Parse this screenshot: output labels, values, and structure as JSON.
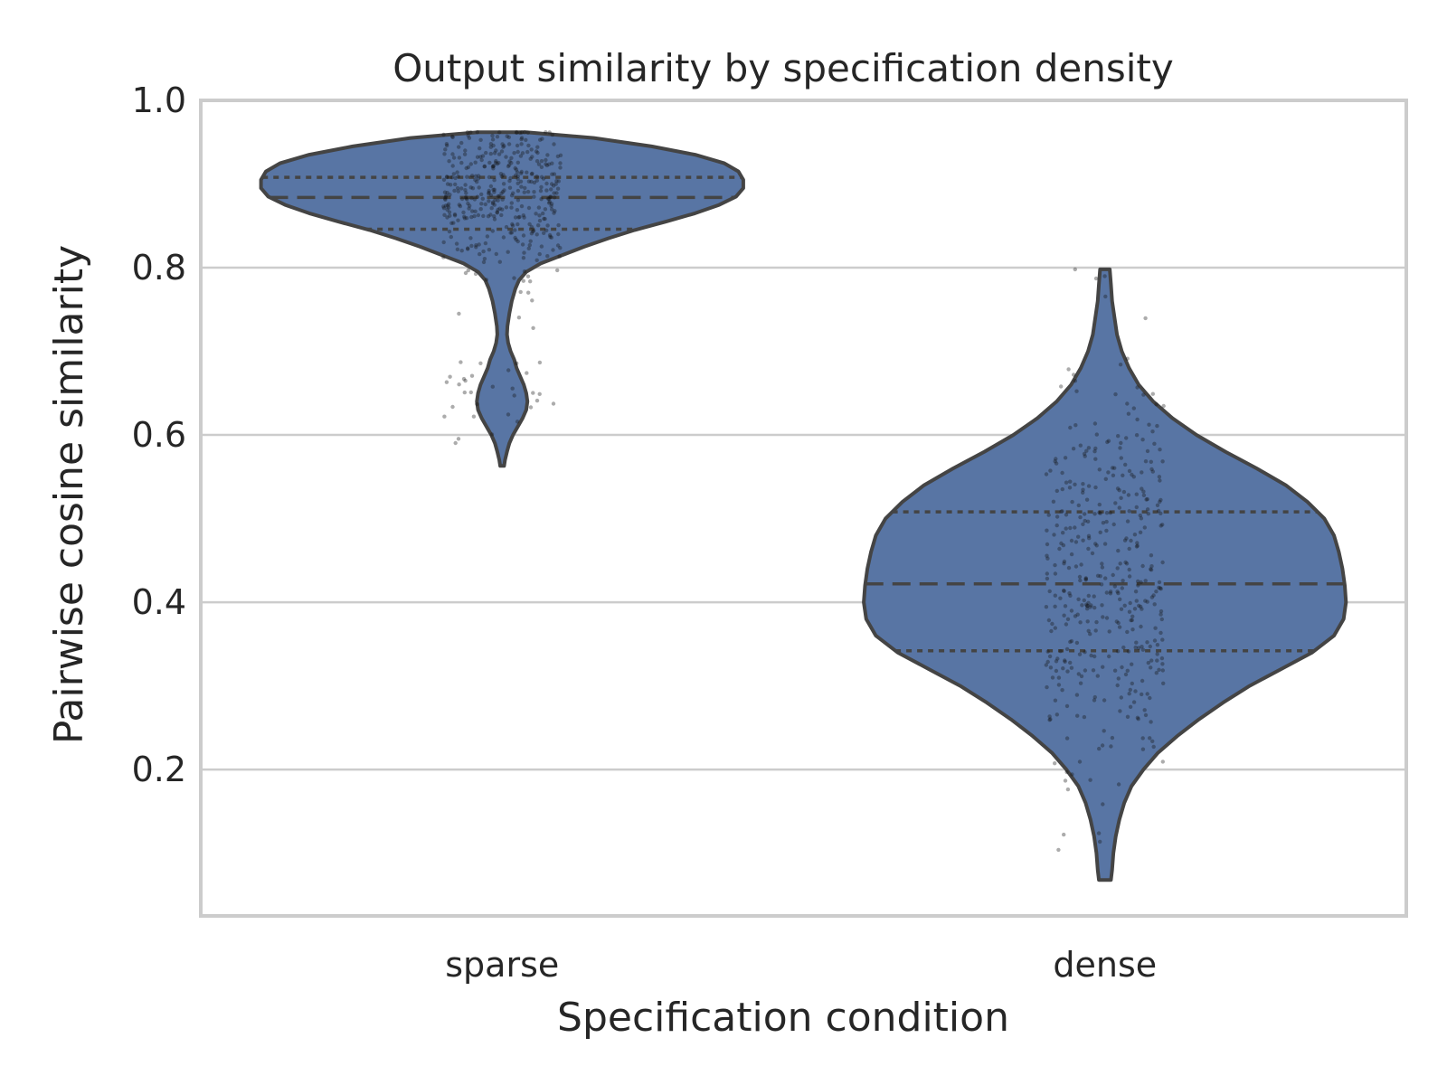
{
  "chart_data": {
    "type": "violin",
    "title": "Output similarity by specification density",
    "xlabel": "Specification condition",
    "ylabel": "Pairwise cosine similarity",
    "categories": [
      "sparse",
      "dense"
    ],
    "ylim": [
      0.025,
      1.0
    ],
    "yticks": [
      0.2,
      0.4,
      0.6,
      0.8,
      1.0
    ],
    "ytick_labels": [
      "0.2",
      "0.4",
      "0.6",
      "0.8",
      "1.0"
    ],
    "grid": "horizontal",
    "fill_color": "#5875a4",
    "edge_color": "#444444",
    "inner": "quartile",
    "violins": [
      {
        "category": "sparse",
        "min": 0.563,
        "max": 0.962,
        "quartiles": {
          "q1": 0.846,
          "median": 0.884,
          "q3": 0.908
        },
        "profile": [
          [
            0.962,
            0.1
          ],
          [
            0.955,
            0.38
          ],
          [
            0.945,
            0.62
          ],
          [
            0.935,
            0.8
          ],
          [
            0.925,
            0.92
          ],
          [
            0.915,
            0.98
          ],
          [
            0.905,
            1.0
          ],
          [
            0.895,
            1.0
          ],
          [
            0.885,
            0.97
          ],
          [
            0.875,
            0.9
          ],
          [
            0.865,
            0.8
          ],
          [
            0.855,
            0.68
          ],
          [
            0.845,
            0.55
          ],
          [
            0.835,
            0.44
          ],
          [
            0.825,
            0.34
          ],
          [
            0.815,
            0.25
          ],
          [
            0.805,
            0.16
          ],
          [
            0.795,
            0.1
          ],
          [
            0.785,
            0.07
          ],
          [
            0.775,
            0.055
          ],
          [
            0.76,
            0.04
          ],
          [
            0.745,
            0.03
          ],
          [
            0.73,
            0.022
          ],
          [
            0.72,
            0.02
          ],
          [
            0.71,
            0.025
          ],
          [
            0.7,
            0.035
          ],
          [
            0.69,
            0.05
          ],
          [
            0.68,
            0.06
          ],
          [
            0.67,
            0.075
          ],
          [
            0.66,
            0.09
          ],
          [
            0.65,
            0.1
          ],
          [
            0.64,
            0.105
          ],
          [
            0.63,
            0.1
          ],
          [
            0.62,
            0.085
          ],
          [
            0.61,
            0.065
          ],
          [
            0.6,
            0.045
          ],
          [
            0.59,
            0.03
          ],
          [
            0.58,
            0.02
          ],
          [
            0.57,
            0.012
          ],
          [
            0.563,
            0.008
          ]
        ]
      },
      {
        "category": "dense",
        "min": 0.068,
        "max": 0.798,
        "quartiles": {
          "q1": 0.342,
          "median": 0.422,
          "q3": 0.508
        },
        "profile": [
          [
            0.798,
            0.02
          ],
          [
            0.78,
            0.025
          ],
          [
            0.76,
            0.03
          ],
          [
            0.74,
            0.04
          ],
          [
            0.72,
            0.05
          ],
          [
            0.7,
            0.07
          ],
          [
            0.68,
            0.1
          ],
          [
            0.66,
            0.14
          ],
          [
            0.64,
            0.2
          ],
          [
            0.62,
            0.28
          ],
          [
            0.6,
            0.38
          ],
          [
            0.58,
            0.5
          ],
          [
            0.56,
            0.63
          ],
          [
            0.54,
            0.75
          ],
          [
            0.52,
            0.84
          ],
          [
            0.5,
            0.91
          ],
          [
            0.48,
            0.95
          ],
          [
            0.46,
            0.97
          ],
          [
            0.44,
            0.985
          ],
          [
            0.42,
            0.995
          ],
          [
            0.4,
            1.0
          ],
          [
            0.38,
            0.99
          ],
          [
            0.36,
            0.95
          ],
          [
            0.34,
            0.86
          ],
          [
            0.32,
            0.73
          ],
          [
            0.3,
            0.6
          ],
          [
            0.28,
            0.49
          ],
          [
            0.26,
            0.39
          ],
          [
            0.24,
            0.3
          ],
          [
            0.22,
            0.22
          ],
          [
            0.2,
            0.16
          ],
          [
            0.18,
            0.11
          ],
          [
            0.16,
            0.08
          ],
          [
            0.14,
            0.06
          ],
          [
            0.12,
            0.045
          ],
          [
            0.1,
            0.035
          ],
          [
            0.08,
            0.03
          ],
          [
            0.068,
            0.025
          ]
        ]
      }
    ]
  }
}
